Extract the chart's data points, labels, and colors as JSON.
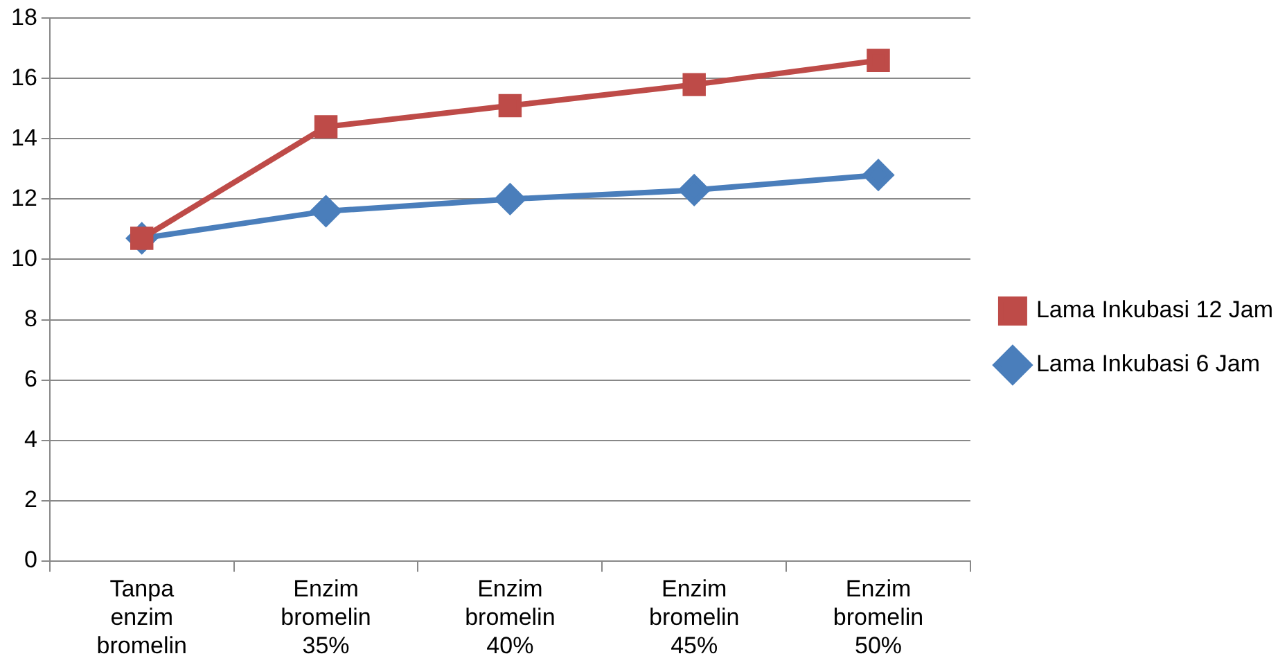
{
  "chart_data": {
    "type": "line",
    "categories": [
      "Tanpa enzim bromelin",
      "Enzim bromelin 35%",
      "Enzim bromelin 40%",
      "Enzim bromelin 45%",
      "Enzim bromelin 50%"
    ],
    "series": [
      {
        "name": "Lama Inkubasi 6 Jam",
        "color": "#4a7ebb",
        "marker": "diamond",
        "values": [
          10.7,
          11.6,
          12.0,
          12.3,
          12.8
        ]
      },
      {
        "name": "Lama Inkubasi 12 Jam",
        "color": "#be4b48",
        "marker": "square",
        "values": [
          10.7,
          14.4,
          15.1,
          15.8,
          16.6
        ]
      }
    ],
    "ylim": [
      0,
      18
    ],
    "yticks": [
      0,
      2,
      4,
      6,
      8,
      10,
      12,
      14,
      16,
      18
    ],
    "grid": "y",
    "legend": "right",
    "line_style": "solid"
  }
}
